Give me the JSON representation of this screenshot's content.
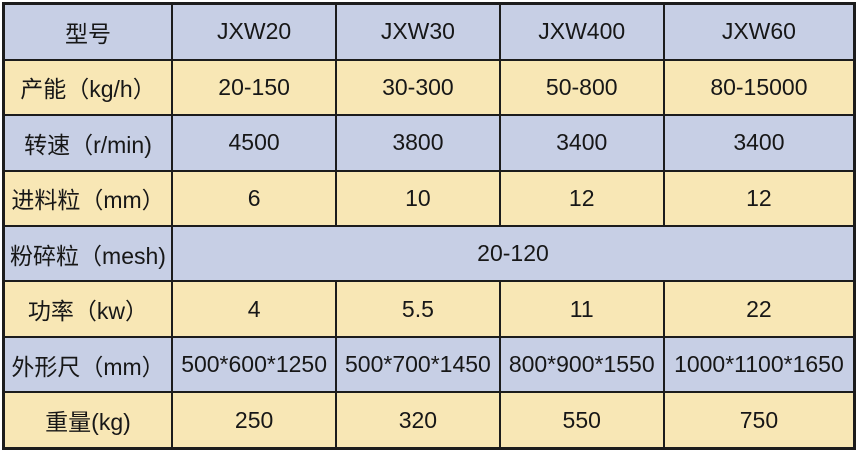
{
  "colors": {
    "row_blue": "#c7cfe5",
    "row_cream": "#f8e7b5",
    "border": "#1c1c1c",
    "text": "#171717"
  },
  "table": {
    "header": {
      "label": "型号",
      "models": [
        "JXW20",
        "JXW30",
        "JXW400",
        "JXW60"
      ]
    },
    "rows": [
      {
        "label": "产能（kg/h）",
        "values": [
          "20-150",
          "30-300",
          "50-800",
          "80-15000"
        ]
      },
      {
        "label": "转速（r/min)",
        "values": [
          "4500",
          "3800",
          "3400",
          "3400"
        ]
      },
      {
        "label": "进料粒（mm）",
        "values": [
          "6",
          "10",
          "12",
          "12"
        ]
      },
      {
        "label": "粉碎粒（mesh)",
        "values": [
          "20-120"
        ],
        "merged": true
      },
      {
        "label": "功率（kw）",
        "values": [
          "4",
          "5.5",
          "11",
          "22"
        ]
      },
      {
        "label": "外形尺（mm）",
        "values": [
          "500*600*1250",
          "500*700*1450",
          "800*900*1550",
          "1000*1100*1650"
        ]
      },
      {
        "label": "重量(kg)",
        "values": [
          "250",
          "320",
          "550",
          "750"
        ]
      }
    ]
  },
  "chart_data": {
    "type": "table",
    "title": "",
    "columns": [
      "型号",
      "JXW20",
      "JXW30",
      "JXW400",
      "JXW60"
    ],
    "rows": [
      [
        "产能（kg/h）",
        "20-150",
        "30-300",
        "50-800",
        "80-15000"
      ],
      [
        "转速（r/min)",
        "4500",
        "3800",
        "3400",
        "3400"
      ],
      [
        "进料粒（mm）",
        "6",
        "10",
        "12",
        "12"
      ],
      [
        "粉碎粒（mesh)",
        "20-120",
        "20-120",
        "20-120",
        "20-120"
      ],
      [
        "功率（kw）",
        "4",
        "5.5",
        "11",
        "22"
      ],
      [
        "外形尺（mm）",
        "500*600*1250",
        "500*700*1450",
        "800*900*1550",
        "1000*1100*1650"
      ],
      [
        "重量(kg)",
        "250",
        "320",
        "550",
        "750"
      ]
    ]
  }
}
